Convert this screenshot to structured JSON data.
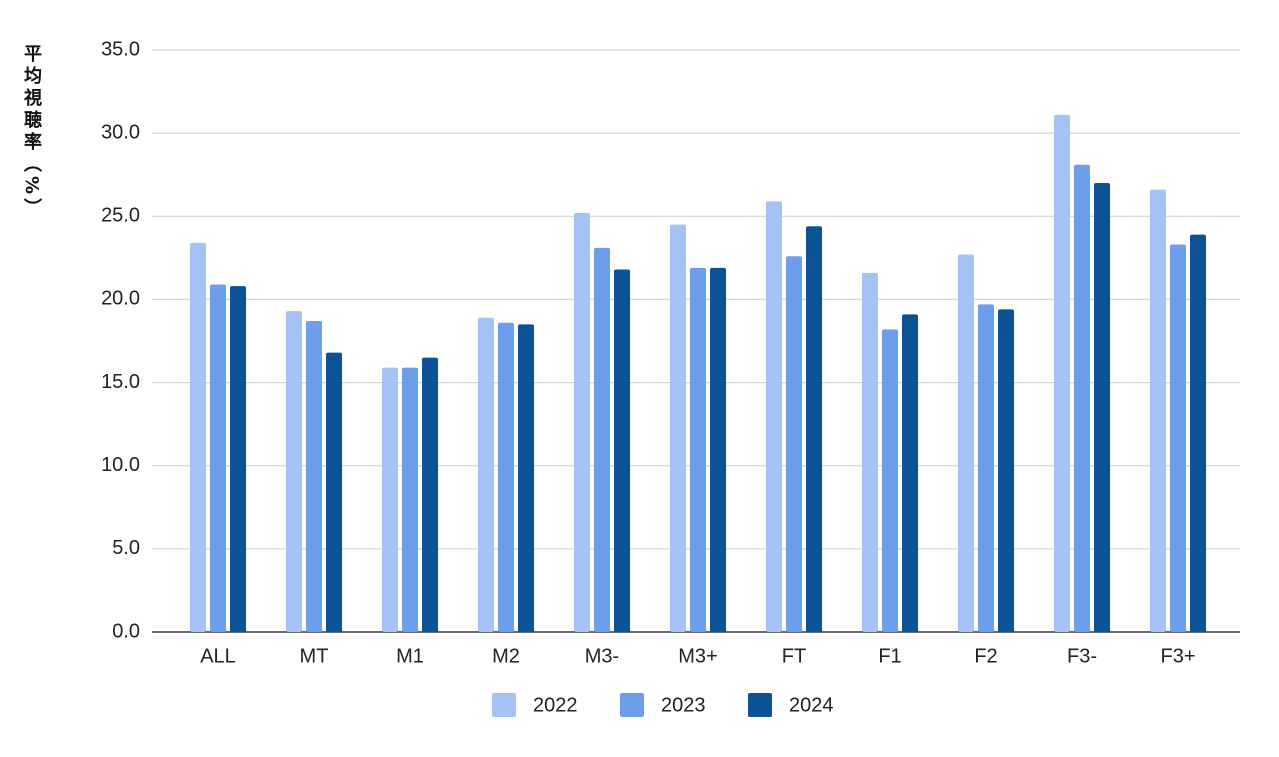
{
  "chart_data": {
    "type": "bar",
    "y_label": "平均視聴率（%）",
    "categories": [
      "ALL",
      "MT",
      "M1",
      "M2",
      "M3-",
      "M3+",
      "FT",
      "F1",
      "F2",
      "F3-",
      "F3+"
    ],
    "series": [
      {
        "name": "2022",
        "color": "#a4c2f4",
        "values": [
          23.4,
          19.3,
          15.9,
          18.9,
          25.2,
          24.5,
          25.9,
          21.6,
          22.7,
          31.1,
          26.6
        ]
      },
      {
        "name": "2023",
        "color": "#6d9eeb",
        "values": [
          20.9,
          18.7,
          15.9,
          18.6,
          23.1,
          21.9,
          22.6,
          18.2,
          19.7,
          28.1,
          23.3
        ]
      },
      {
        "name": "2024",
        "color": "#0b5394",
        "values": [
          20.8,
          16.8,
          16.5,
          18.5,
          21.8,
          21.9,
          24.4,
          19.1,
          19.4,
          27.0,
          23.9
        ]
      }
    ],
    "ylim": [
      0,
      35
    ],
    "yticks": [
      {
        "value": 0,
        "label": "0.0"
      },
      {
        "value": 5,
        "label": "5.0"
      },
      {
        "value": 10,
        "label": "10.0"
      },
      {
        "value": 15,
        "label": "15.0"
      },
      {
        "value": 20,
        "label": "20.0"
      },
      {
        "value": 25,
        "label": "25.0"
      },
      {
        "value": 30,
        "label": "30.0"
      },
      {
        "value": 35,
        "label": "35.0"
      }
    ],
    "grid": true,
    "legend": "bottom"
  }
}
